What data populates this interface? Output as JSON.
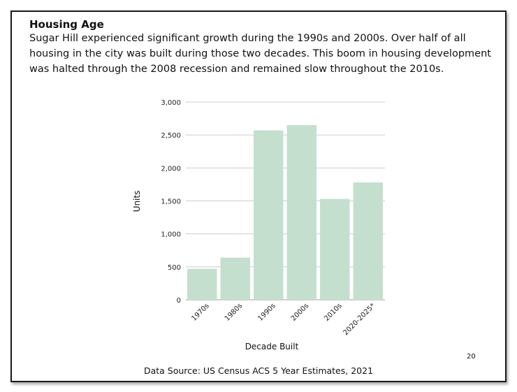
{
  "slide": {
    "heading": "Housing Age",
    "body": "Sugar Hill experienced significant growth during the 1990s and 2000s. Over half of all housing in the city was built during those two decades. This boom in housing development was halted through the 2008 recession and remained slow throughout the 2010s.",
    "source": "Data Source: US Census ACS 5 Year Estimates, 2021",
    "page_number": "20"
  },
  "chart_data": {
    "type": "bar",
    "categories": [
      "1970s",
      "1980s",
      "1990s",
      "2000s",
      "2010s",
      "2020-2025*"
    ],
    "values": [
      470,
      640,
      2570,
      2650,
      1530,
      1780
    ],
    "title": "",
    "xlabel": "Decade Built",
    "ylabel": "Units",
    "ylim": [
      0,
      3000
    ],
    "yticks": [
      0,
      500,
      1000,
      1500,
      2000,
      2500,
      3000
    ],
    "ytick_labels": [
      "0",
      "500",
      "1,000",
      "1,500",
      "2,000",
      "2,500",
      "3,000"
    ],
    "bar_color": "#c5dfcf",
    "grid": true
  }
}
